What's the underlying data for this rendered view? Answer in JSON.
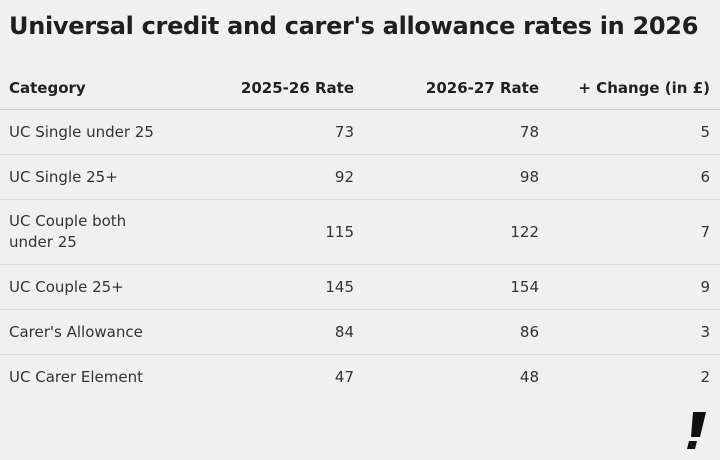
{
  "chart_data": {
    "type": "table",
    "title": "Universal credit and carer's allowance rates in 2026",
    "columns": [
      "Category",
      "2025-26 Rate",
      "2026-27 Rate",
      "+ Change (in £)"
    ],
    "rows": [
      {
        "category": "UC Single under 25",
        "rate_2025_26": "73",
        "rate_2026_27": "78",
        "change": "5"
      },
      {
        "category": "UC Single 25+",
        "rate_2025_26": "92",
        "rate_2026_27": "98",
        "change": "6"
      },
      {
        "category": "UC Couple both under 25",
        "rate_2025_26": "115",
        "rate_2026_27": "122",
        "change": "7"
      },
      {
        "category": "UC Couple 25+",
        "rate_2025_26": "145",
        "rate_2026_27": "154",
        "change": "9"
      },
      {
        "category": "Carer's Allowance",
        "rate_2025_26": "84",
        "rate_2026_27": "86",
        "change": "3"
      },
      {
        "category": "UC Carer Element",
        "rate_2025_26": "47",
        "rate_2026_27": "48",
        "change": "2"
      }
    ]
  },
  "brand": {
    "logo_icon": "exclamation-logo-icon",
    "color": "#111111"
  },
  "colors": {
    "background": "#f0f0f0",
    "text": "#222222",
    "divider": "#d9d9d9"
  }
}
